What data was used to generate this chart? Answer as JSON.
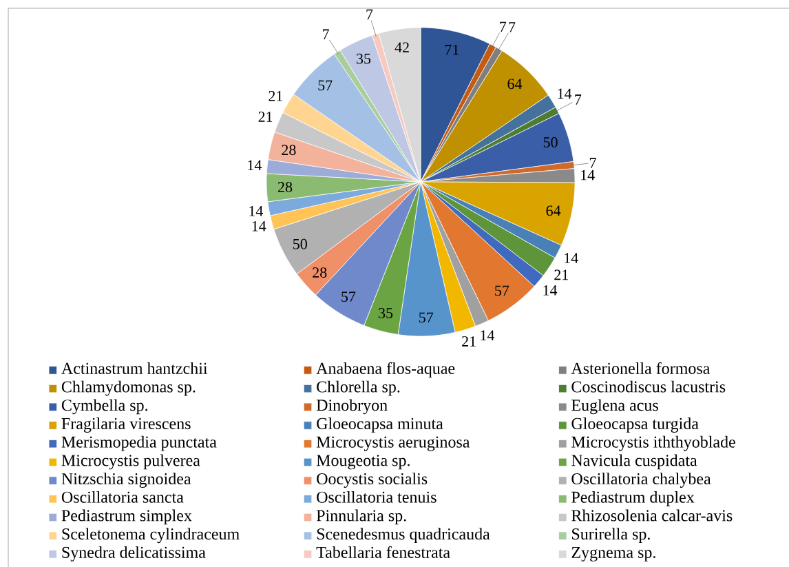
{
  "chart_data": {
    "type": "pie",
    "categories": [
      "Actinastrum hantzchii",
      "Anabaena flos-aquae",
      "Asterionella formosa",
      "Chlamydomonas sp.",
      "Chlorella sp.",
      "Coscinodiscus lacustris",
      "Cymbella sp.",
      "Dinobryon",
      "Euglena acus",
      "Fragilaria virescens",
      "Gloeocapsa minuta",
      "Gloeocapsa turgida",
      "Merismopedia punctata",
      "Microcystis aeruginosa",
      "Microcystis iththyoblade",
      "Microcystis pulverea",
      "Mougeotia sp.",
      "Navicula cuspidata",
      "Nitzschia signoidea",
      "Oocystis socialis",
      "Oscillatoria chalybea",
      "Oscillatoria sancta",
      "Oscillatoria tenuis",
      "Pediastrum duplex",
      "Pediastrum simplex",
      "Pinnularia sp.",
      "Rhizosolenia calcar-avis",
      "Sceletonema cylindraceum",
      "Scenedesmus quadricauda",
      "Surirella sp.",
      "Synedra delicatissima",
      "Tabellaria fenestrata",
      "Zygnema sp."
    ],
    "values": [
      71,
      7,
      7,
      64,
      14,
      7,
      50,
      7,
      14,
      64,
      14,
      21,
      14,
      57,
      14,
      21,
      57,
      35,
      57,
      28,
      50,
      14,
      14,
      28,
      14,
      28,
      21,
      21,
      57,
      7,
      35,
      7,
      42
    ],
    "colors": [
      "#2F5597",
      "#C55A11",
      "#7F7F7F",
      "#BF9000",
      "#44729D",
      "#4E7D32",
      "#3A5EA8",
      "#D0692A",
      "#8A8A8A",
      "#D9A300",
      "#4A80B8",
      "#5E943A",
      "#3F6ABE",
      "#E27830",
      "#A0A0A0",
      "#F2B800",
      "#5694CB",
      "#6AA443",
      "#6F89CB",
      "#EF9069",
      "#B1B1B1",
      "#FFC455",
      "#7DAADD",
      "#8BBB70",
      "#9DABD8",
      "#F2B29B",
      "#C8C8C8",
      "#FFD591",
      "#A4C1E5",
      "#AACE9B",
      "#BEC8E5",
      "#F6CAC0",
      "#D9D9D9"
    ],
    "data_labels": true,
    "legend": "bottom"
  }
}
